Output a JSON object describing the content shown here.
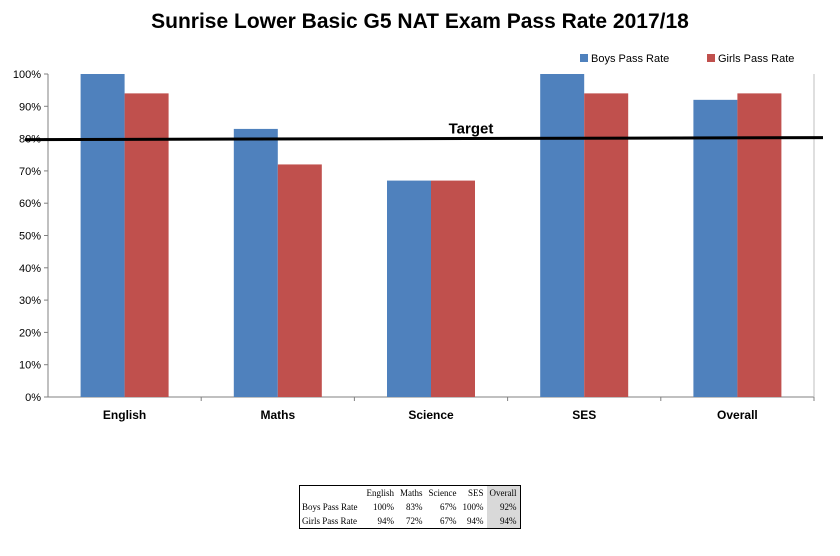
{
  "chart_data": {
    "type": "bar",
    "title": "Sunrise Lower Basic G5 NAT Exam Pass Rate 2017/18",
    "categories": [
      "English",
      "Maths",
      "Science",
      "SES",
      "Overall"
    ],
    "series": [
      {
        "name": "Boys Pass Rate",
        "values": [
          100,
          83,
          67,
          100,
          92
        ],
        "color": "#4f81bd"
      },
      {
        "name": "Girls Pass Rate",
        "values": [
          94,
          72,
          67,
          94,
          94
        ],
        "color": "#c0504d"
      }
    ],
    "ylim": [
      0,
      100
    ],
    "yticks": [
      "0%",
      "10%",
      "20%",
      "30%",
      "40%",
      "50%",
      "60%",
      "70%",
      "80%",
      "90%",
      "100%"
    ],
    "target": {
      "label": "Target",
      "value": 80,
      "color": "#000000"
    },
    "legend": "top-right",
    "grid": false,
    "table": {
      "headers": [
        "English",
        "Maths",
        "Science",
        "SES",
        "Overall"
      ],
      "rows": [
        {
          "label": "Boys Pass Rate",
          "cells": [
            "100%",
            "83%",
            "67%",
            "100%",
            "92%"
          ]
        },
        {
          "label": "Girls Pass Rate",
          "cells": [
            "94%",
            "72%",
            "67%",
            "94%",
            "94%"
          ]
        }
      ]
    }
  }
}
